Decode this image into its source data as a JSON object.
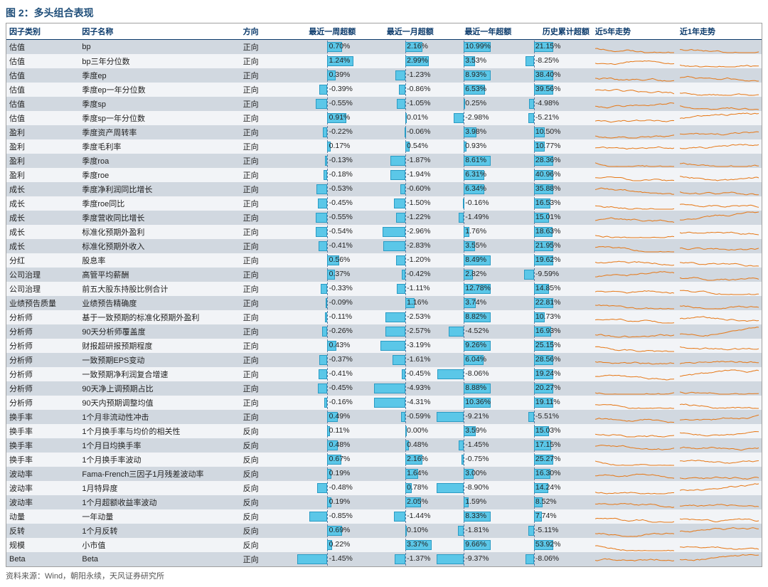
{
  "title": "图 2：多头组合表现",
  "source": "资料来源：Wind，朝阳永续，天风证券研究所",
  "columns": [
    "因子类别",
    "因子名称",
    "方向",
    "最近一周超额",
    "最近一月超额",
    "最近一年超额",
    "历史累计超额",
    "近5年走势",
    "近1年走势"
  ],
  "bar_color": "#5bc7e8",
  "bar_border": "#2a9bc4",
  "row_odd_bg": "#d1d8e0",
  "row_even_bg": "#f2f4f7",
  "header_text_color": "#0b3a6b",
  "spark_color": "#e67817",
  "axis_color": "#5b7aa0",
  "metrics": {
    "w": {
      "axis": 0.6,
      "scale": 27
    },
    "m": {
      "axis": 0.6,
      "scale": 10
    },
    "y": {
      "axis": 0.35,
      "scale": 4.2
    },
    "c": {
      "axis": 0.25,
      "scale": 1.3
    }
  },
  "rows": [
    {
      "cat": "估值",
      "name": "bp",
      "dir": "正向",
      "w": 0.7,
      "m": 2.16,
      "y": 10.99,
      "c": 21.15
    },
    {
      "cat": "估值",
      "name": "bp三年分位数",
      "dir": "正向",
      "w": 1.24,
      "m": 2.99,
      "y": 3.53,
      "c": -8.25
    },
    {
      "cat": "估值",
      "name": "季度ep",
      "dir": "正向",
      "w": 0.39,
      "m": -1.23,
      "y": 8.93,
      "c": 38.4
    },
    {
      "cat": "估值",
      "name": "季度ep一年分位数",
      "dir": "正向",
      "w": -0.39,
      "m": -0.86,
      "y": 6.53,
      "c": 39.56
    },
    {
      "cat": "估值",
      "name": "季度sp",
      "dir": "正向",
      "w": -0.55,
      "m": -1.05,
      "y": 0.25,
      "c": -4.98
    },
    {
      "cat": "估值",
      "name": "季度sp一年分位数",
      "dir": "正向",
      "w": 0.91,
      "m": 0.01,
      "y": -2.98,
      "c": -5.21
    },
    {
      "cat": "盈利",
      "name": "季度资产周转率",
      "dir": "正向",
      "w": -0.22,
      "m": -0.06,
      "y": 3.98,
      "c": 10.5
    },
    {
      "cat": "盈利",
      "name": "季度毛利率",
      "dir": "正向",
      "w": 0.17,
      "m": 0.54,
      "y": 0.93,
      "c": 10.77
    },
    {
      "cat": "盈利",
      "name": "季度roa",
      "dir": "正向",
      "w": -0.13,
      "m": -1.87,
      "y": 8.61,
      "c": 28.36
    },
    {
      "cat": "盈利",
      "name": "季度roe",
      "dir": "正向",
      "w": -0.18,
      "m": -1.94,
      "y": 6.31,
      "c": 40.96
    },
    {
      "cat": "成长",
      "name": "季度净利润同比增长",
      "dir": "正向",
      "w": -0.53,
      "m": -0.6,
      "y": 6.34,
      "c": 35.88
    },
    {
      "cat": "成长",
      "name": "季度roe同比",
      "dir": "正向",
      "w": -0.45,
      "m": -1.5,
      "y": -0.16,
      "c": 16.53
    },
    {
      "cat": "成长",
      "name": "季度营收同比增长",
      "dir": "正向",
      "w": -0.55,
      "m": -1.22,
      "y": -1.49,
      "c": 15.01
    },
    {
      "cat": "成长",
      "name": "标准化预期外盈利",
      "dir": "正向",
      "w": -0.54,
      "m": -2.96,
      "y": 1.76,
      "c": 18.63
    },
    {
      "cat": "成长",
      "name": "标准化预期外收入",
      "dir": "正向",
      "w": -0.41,
      "m": -2.83,
      "y": 3.55,
      "c": 21.95
    },
    {
      "cat": "分红",
      "name": "股息率",
      "dir": "正向",
      "w": 0.56,
      "m": -1.2,
      "y": 8.49,
      "c": 19.62
    },
    {
      "cat": "公司治理",
      "name": "高管平均薪酬",
      "dir": "正向",
      "w": 0.37,
      "m": -0.42,
      "y": 2.82,
      "c": -9.59
    },
    {
      "cat": "公司治理",
      "name": "前五大股东持股比例合计",
      "dir": "正向",
      "w": -0.33,
      "m": -1.11,
      "y": 12.78,
      "c": 14.85
    },
    {
      "cat": "业绩预告质量",
      "name": "业绩预告精确度",
      "dir": "正向",
      "w": -0.09,
      "m": 1.16,
      "y": 3.74,
      "c": 22.81
    },
    {
      "cat": "分析师",
      "name": "基于一致预期的标准化预期外盈利",
      "dir": "正向",
      "w": -0.11,
      "m": -2.53,
      "y": 8.82,
      "c": 10.73
    },
    {
      "cat": "分析师",
      "name": "90天分析师覆盖度",
      "dir": "正向",
      "w": -0.26,
      "m": -2.57,
      "y": -4.52,
      "c": 16.93
    },
    {
      "cat": "分析师",
      "name": "财报超研报预期程度",
      "dir": "正向",
      "w": 0.43,
      "m": -3.19,
      "y": 9.26,
      "c": 25.15
    },
    {
      "cat": "分析师",
      "name": "一致预期EPS变动",
      "dir": "正向",
      "w": -0.37,
      "m": -1.61,
      "y": 6.04,
      "c": 28.56
    },
    {
      "cat": "分析师",
      "name": "一致预期净利润复合增速",
      "dir": "正向",
      "w": -0.41,
      "m": -0.45,
      "y": -8.06,
      "c": 19.24
    },
    {
      "cat": "分析师",
      "name": "90天净上调预期占比",
      "dir": "正向",
      "w": -0.45,
      "m": -4.93,
      "y": 8.88,
      "c": 20.27
    },
    {
      "cat": "分析师",
      "name": "90天内预期调整均值",
      "dir": "正向",
      "w": -0.16,
      "m": -4.31,
      "y": 10.36,
      "c": 19.11
    },
    {
      "cat": "换手率",
      "name": "1个月非流动性冲击",
      "dir": "正向",
      "w": 0.49,
      "m": -0.59,
      "y": -9.21,
      "c": -5.51
    },
    {
      "cat": "换手率",
      "name": "1个月换手率与均价的相关性",
      "dir": "反向",
      "w": 0.11,
      "m": 0.0,
      "y": 3.59,
      "c": 15.03
    },
    {
      "cat": "换手率",
      "name": "1个月日均换手率",
      "dir": "反向",
      "w": 0.48,
      "m": 0.48,
      "y": -1.45,
      "c": 17.15
    },
    {
      "cat": "换手率",
      "name": "1个月换手率波动",
      "dir": "反向",
      "w": 0.67,
      "m": 2.16,
      "y": -0.75,
      "c": 25.27
    },
    {
      "cat": "波动率",
      "name": "Fama-French三因子1月残差波动率",
      "dir": "反向",
      "w": 0.19,
      "m": 1.64,
      "y": 3.0,
      "c": 16.3
    },
    {
      "cat": "波动率",
      "name": "1月特异度",
      "dir": "反向",
      "w": -0.48,
      "m": 0.78,
      "y": -8.9,
      "c": 14.24
    },
    {
      "cat": "波动率",
      "name": "1个月超额收益率波动",
      "dir": "反向",
      "w": 0.19,
      "m": 2.05,
      "y": 1.59,
      "c": 8.52
    },
    {
      "cat": "动量",
      "name": "一年动量",
      "dir": "反向",
      "w": -0.85,
      "m": -1.44,
      "y": 8.33,
      "c": 7.74
    },
    {
      "cat": "反转",
      "name": "1个月反转",
      "dir": "反向",
      "w": 0.69,
      "m": 0.1,
      "y": -1.81,
      "c": -5.11
    },
    {
      "cat": "规模",
      "name": "小市值",
      "dir": "反向",
      "w": 0.22,
      "m": 3.37,
      "y": 9.66,
      "c": 53.92
    },
    {
      "cat": "Beta",
      "name": "Beta",
      "dir": "正向",
      "w": -1.45,
      "m": -1.37,
      "y": -9.37,
      "c": -8.06
    }
  ]
}
